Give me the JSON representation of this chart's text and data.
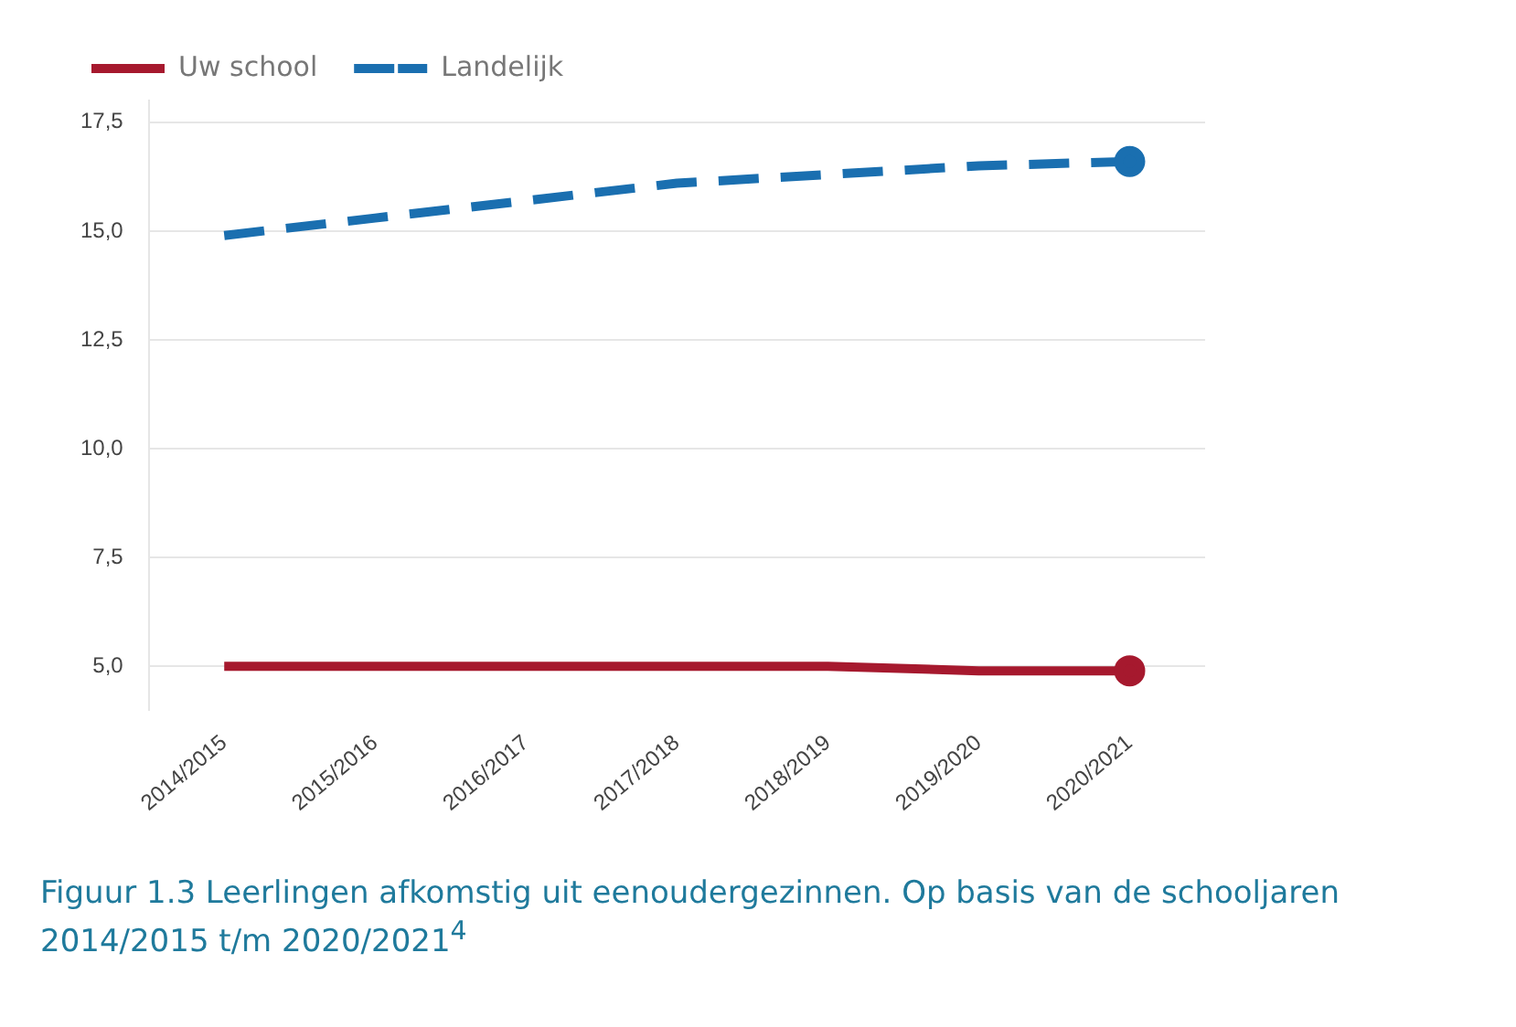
{
  "chart_data": {
    "type": "line",
    "categories": [
      "2014/2015",
      "2015/2016",
      "2016/2017",
      "2017/2018",
      "2018/2019",
      "2019/2020",
      "2020/2021"
    ],
    "series": [
      {
        "name": "Uw school",
        "color": "#a6192e",
        "line_style": "solid",
        "values": [
          5.0,
          5.0,
          5.0,
          5.0,
          5.0,
          4.9,
          4.9
        ]
      },
      {
        "name": "Landelijk",
        "color": "#1a6fb0",
        "line_style": "dashed",
        "values": [
          14.9,
          15.3,
          15.7,
          16.1,
          16.3,
          16.5,
          16.6
        ]
      }
    ],
    "ylim": [
      4,
      18
    ],
    "yticks": [
      {
        "value": 5,
        "label": "5,0"
      },
      {
        "value": 7.5,
        "label": "7,5"
      },
      {
        "value": 10,
        "label": "10,0"
      },
      {
        "value": 12.5,
        "label": "12,5"
      },
      {
        "value": 15,
        "label": "15,0"
      },
      {
        "value": 17.5,
        "label": "17,5"
      }
    ],
    "grid": "y",
    "legend": "top left",
    "annotations": [
      "Figuur 1.3 Leerlingen afkomstig uit eenoudergezinnen. Op basis van de schooljaren 2014/2015 t/m 2020/2021$^{4}$"
    ]
  }
}
